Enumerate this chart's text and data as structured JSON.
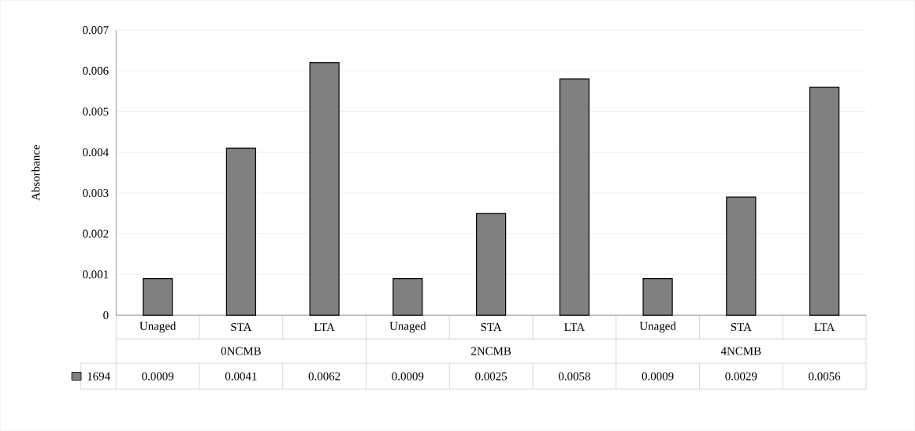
{
  "chart_data": {
    "type": "bar",
    "ylabel": "Absorbance",
    "categories": [
      "Unaged",
      "STA",
      "LTA",
      "Unaged",
      "STA",
      "LTA",
      "Unaged",
      "STA",
      "LTA"
    ],
    "annotations": [
      "0NCMB",
      "2NCMB",
      "4NCMB"
    ],
    "series": [
      {
        "name": "1694",
        "color": "#808080",
        "values": [
          0.0009,
          0.0041,
          0.0062,
          0.0009,
          0.0025,
          0.0058,
          0.0009,
          0.0029,
          0.0056
        ],
        "value_labels": [
          "0.0009",
          "0.0041",
          "0.0062",
          "0.0009",
          "0.0025",
          "0.0058",
          "0.0009",
          "0.0029",
          "0.0056"
        ]
      }
    ],
    "ylim": [
      0,
      0.007
    ],
    "yticks": [
      0,
      0.001,
      0.002,
      0.003,
      0.004,
      0.005,
      0.006,
      0.007
    ],
    "grid": "y",
    "legend": "bottom"
  }
}
